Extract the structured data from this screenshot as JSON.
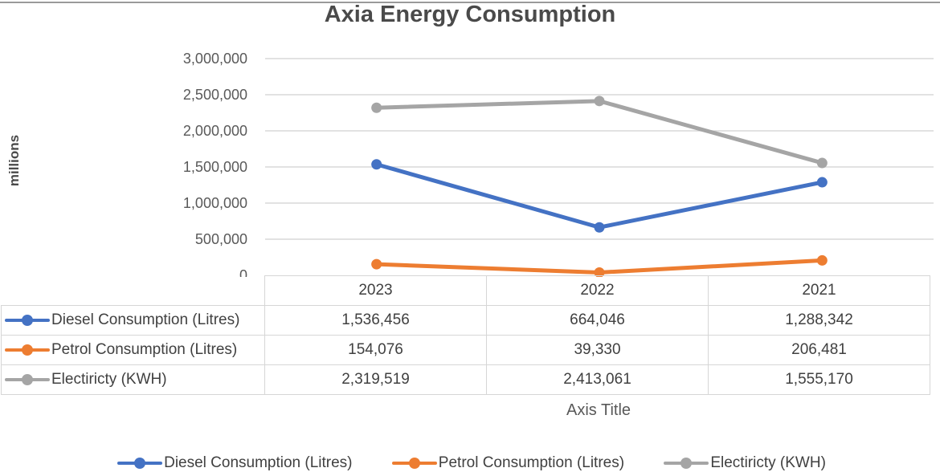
{
  "chart_data": {
    "type": "line",
    "title": "Axia Energy Consumption",
    "ylabel": "millions",
    "xlabel": "Axis Title",
    "categories": [
      "2023",
      "2022",
      "2021"
    ],
    "ylim": [
      0,
      3000000
    ],
    "yticks": [
      0,
      500000,
      1000000,
      1500000,
      2000000,
      2500000,
      3000000
    ],
    "ytick_labels": [
      "0",
      "500,000",
      "1,000,000",
      "1,500,000",
      "2,000,000",
      "2,500,000",
      "3,000,000"
    ],
    "grid": true,
    "legend_position": "bottom",
    "data_table": true,
    "series": [
      {
        "name": "Diesel Consumption (Litres)",
        "color": "#4472c4",
        "values": [
          1536456,
          664046,
          1288342
        ],
        "labels": [
          "1,536,456",
          "664,046",
          "1,288,342"
        ]
      },
      {
        "name": "Petrol Consumption (Litres)",
        "color": "#ed7d31",
        "values": [
          154076,
          39330,
          206481
        ],
        "labels": [
          "154,076",
          "39,330",
          "206,481"
        ]
      },
      {
        "name": "Electiricty (KWH)",
        "color": "#a5a5a5",
        "values": [
          2319519,
          2413061,
          1555170
        ],
        "labels": [
          "2,319,519",
          "2,413,061",
          "1,555,170"
        ]
      }
    ]
  }
}
